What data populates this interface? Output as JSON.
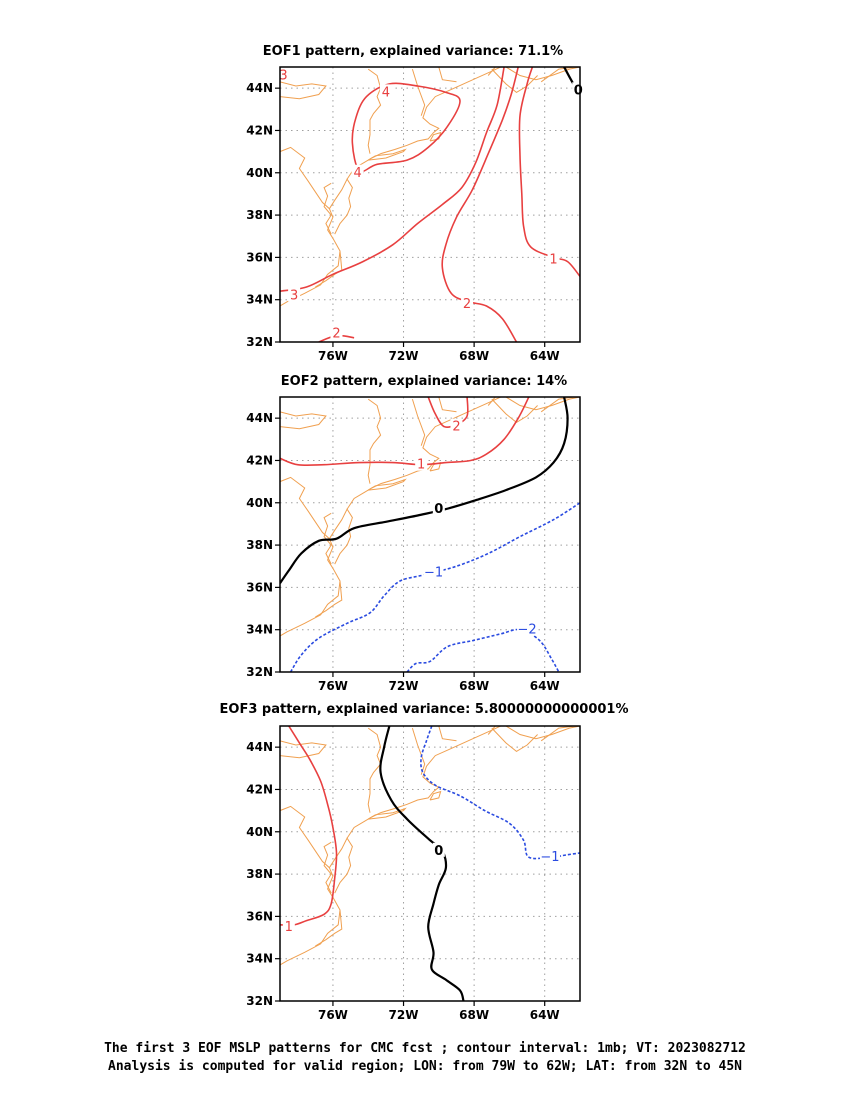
{
  "panels": [
    {
      "id": "eof1",
      "title": "EOF1 pattern, explained variance: 71.1%",
      "contours": [
        {
          "value": 4,
          "label": "4",
          "color": "#e84040",
          "dashed": false,
          "closed": true,
          "points": [
            [
              -74.5,
              40.1
            ],
            [
              -73.5,
              40.4
            ],
            [
              -71.8,
              40.6
            ],
            [
              -70.6,
              41.2
            ],
            [
              -69.5,
              42.2
            ],
            [
              -68.8,
              43.4
            ],
            [
              -69.6,
              43.8
            ],
            [
              -71.2,
              44.1
            ],
            [
              -72.8,
              44.2
            ],
            [
              -74.1,
              43.6
            ],
            [
              -74.7,
              42.6
            ],
            [
              -74.9,
              41.4
            ],
            [
              -74.5,
              40.1
            ]
          ],
          "labels": [
            [
              -73.0,
              43.8
            ],
            [
              -74.6,
              40.0
            ]
          ]
        },
        {
          "value": 3,
          "label": "3",
          "color": "#e84040",
          "dashed": false,
          "closed": false,
          "points": [
            [
              -79,
              34.4
            ],
            [
              -77.5,
              34.6
            ],
            [
              -76,
              35.2
            ],
            [
              -74.3,
              35.8
            ],
            [
              -72.6,
              36.6
            ],
            [
              -71.2,
              37.6
            ],
            [
              -69.8,
              38.5
            ],
            [
              -68.7,
              39.3
            ],
            [
              -67.9,
              40.5
            ],
            [
              -67.3,
              41.9
            ],
            [
              -66.7,
              43.2
            ],
            [
              -66.3,
              45
            ]
          ],
          "labels": [
            [
              -78.2,
              34.2
            ]
          ]
        },
        {
          "value": 2,
          "label": "2",
          "color": "#e84040",
          "dashed": false,
          "closed": false,
          "points": [
            [
              -65.6,
              32
            ],
            [
              -66.4,
              33.1
            ],
            [
              -67.3,
              33.7
            ],
            [
              -68.3,
              33.9
            ],
            [
              -69.3,
              34.3
            ],
            [
              -69.8,
              35.5
            ],
            [
              -69.6,
              36.6
            ],
            [
              -69.0,
              37.9
            ],
            [
              -68.1,
              39.2
            ],
            [
              -67.2,
              40.9
            ],
            [
              -66.4,
              42.5
            ],
            [
              -65.9,
              43.7
            ],
            [
              -65.5,
              45
            ]
          ],
          "labels": [
            [
              -68.4,
              33.8
            ]
          ]
        },
        {
          "value": 2,
          "label": "2",
          "color": "#e84040",
          "dashed": false,
          "closed": false,
          "points": [
            [
              -76.8,
              32
            ],
            [
              -75.8,
              32.3
            ],
            [
              -74.8,
              32.2
            ]
          ],
          "labels": [
            [
              -75.8,
              32.4
            ]
          ]
        },
        {
          "value": 1,
          "label": "1",
          "color": "#e84040",
          "dashed": false,
          "closed": false,
          "points": [
            [
              -62,
              35.1
            ],
            [
              -62.7,
              35.8
            ],
            [
              -63.5,
              36.0
            ],
            [
              -64.8,
              36.5
            ],
            [
              -65.2,
              37.5
            ],
            [
              -65.3,
              39.0
            ],
            [
              -65.4,
              40.8
            ],
            [
              -65.4,
              42.7
            ],
            [
              -65.0,
              44.2
            ],
            [
              -64.7,
              45
            ]
          ],
          "labels": [
            [
              -63.5,
              35.9
            ]
          ]
        },
        {
          "value": 3,
          "label": "3",
          "color": "#e84040",
          "dashed": false,
          "closed": false,
          "points": [
            [
              -79,
              44.8
            ],
            [
              -78.6,
              44.4
            ]
          ],
          "labels": [
            [
              -78.8,
              44.6
            ]
          ]
        },
        {
          "value": 0,
          "label": "0",
          "color": "#000000",
          "dashed": false,
          "closed": false,
          "width": 2.2,
          "points": [
            [
              -62.9,
              45
            ],
            [
              -62.3,
              44.1
            ],
            [
              -62,
              43.9
            ]
          ],
          "labels": [
            [
              -62.1,
              43.9
            ]
          ]
        }
      ]
    },
    {
      "id": "eof2",
      "title": "EOF2 pattern, explained variance: 14%",
      "contours": [
        {
          "value": 1,
          "label": "1",
          "color": "#e84040",
          "dashed": false,
          "closed": false,
          "points": [
            [
              -79,
              42.1
            ],
            [
              -78,
              41.8
            ],
            [
              -76.5,
              41.8
            ],
            [
              -74.5,
              41.9
            ],
            [
              -72.6,
              41.9
            ],
            [
              -71,
              41.8
            ],
            [
              -69.6,
              41.9
            ],
            [
              -68.2,
              42.0
            ],
            [
              -67.3,
              42.3
            ],
            [
              -66.3,
              43.0
            ],
            [
              -65.5,
              44.0
            ],
            [
              -64.9,
              45
            ]
          ],
          "labels": [
            [
              -71.0,
              41.8
            ]
          ]
        },
        {
          "value": 2,
          "label": "2",
          "color": "#e84040",
          "dashed": false,
          "closed": false,
          "points": [
            [
              -68.4,
              45
            ],
            [
              -68.4,
              44.1
            ],
            [
              -69.0,
              43.7
            ],
            [
              -69.7,
              43.6
            ],
            [
              -70.2,
              44.2
            ],
            [
              -70.6,
              45
            ]
          ],
          "labels": [
            [
              -69.0,
              43.6
            ]
          ]
        },
        {
          "value": 0,
          "label": "0",
          "color": "#000000",
          "dashed": false,
          "closed": false,
          "width": 2.2,
          "points": [
            [
              -79,
              36.2
            ],
            [
              -78.5,
              36.8
            ],
            [
              -77.8,
              37.6
            ],
            [
              -76.8,
              38.2
            ],
            [
              -75.8,
              38.3
            ],
            [
              -74.8,
              38.8
            ],
            [
              -73.0,
              39.1
            ],
            [
              -71.2,
              39.4
            ],
            [
              -69.6,
              39.7
            ],
            [
              -68.0,
              40.1
            ],
            [
              -66.2,
              40.6
            ],
            [
              -64.5,
              41.2
            ],
            [
              -63.5,
              41.9
            ],
            [
              -62.9,
              42.8
            ],
            [
              -62.7,
              44.0
            ],
            [
              -62.9,
              45
            ]
          ],
          "labels": [
            [
              -70.0,
              39.7
            ]
          ]
        },
        {
          "value": -1,
          "label": "1",
          "color": "#2a4be0",
          "dashed": true,
          "closed": false,
          "points": [
            [
              -78.4,
              32
            ],
            [
              -77.8,
              32.8
            ],
            [
              -76.8,
              33.6
            ],
            [
              -75.2,
              34.3
            ],
            [
              -73.9,
              34.8
            ],
            [
              -73.1,
              35.6
            ],
            [
              -72.2,
              36.3
            ],
            [
              -70.8,
              36.6
            ],
            [
              -69.0,
              37.0
            ],
            [
              -67.2,
              37.6
            ],
            [
              -65.4,
              38.4
            ],
            [
              -63.5,
              39.2
            ],
            [
              -62,
              40.0
            ]
          ],
          "labels": [
            [
              -70.3,
              36.7
            ]
          ]
        },
        {
          "value": -2,
          "label": "2",
          "color": "#2a4be0",
          "dashed": true,
          "closed": false,
          "points": [
            [
              -71.8,
              32
            ],
            [
              -71.3,
              32.4
            ],
            [
              -70.5,
              32.5
            ],
            [
              -69.5,
              33.2
            ],
            [
              -68.0,
              33.5
            ],
            [
              -66.5,
              33.8
            ],
            [
              -65.4,
              34.0
            ],
            [
              -64.3,
              33.5
            ],
            [
              -63.6,
              32.6
            ],
            [
              -63.2,
              32
            ]
          ],
          "labels": [
            [
              -65.0,
              34.0
            ]
          ]
        }
      ]
    },
    {
      "id": "eof3",
      "title": "EOF3 pattern, explained variance: 5.80000000000001%",
      "contours": [
        {
          "value": 1,
          "label": "1",
          "color": "#e84040",
          "dashed": false,
          "closed": false,
          "points": [
            [
              -78.5,
              45
            ],
            [
              -77.9,
              44.2
            ],
            [
              -77.3,
              43.4
            ],
            [
              -76.7,
              42.4
            ],
            [
              -76.3,
              41.3
            ],
            [
              -76.0,
              40.2
            ],
            [
              -75.8,
              39.0
            ],
            [
              -75.9,
              37.8
            ],
            [
              -76.1,
              36.6
            ],
            [
              -76.5,
              36.1
            ],
            [
              -77.5,
              35.8
            ],
            [
              -78.2,
              35.6
            ],
            [
              -79,
              35.6
            ]
          ],
          "labels": [
            [
              -78.5,
              35.5
            ]
          ]
        },
        {
          "value": 0,
          "label": "0",
          "color": "#000000",
          "dashed": false,
          "closed": false,
          "width": 2.2,
          "points": [
            [
              -72.8,
              45
            ],
            [
              -73.1,
              44.0
            ],
            [
              -73.3,
              42.8
            ],
            [
              -72.7,
              41.5
            ],
            [
              -71.8,
              40.6
            ],
            [
              -70.5,
              39.6
            ],
            [
              -69.8,
              39.1
            ],
            [
              -69.6,
              38.3
            ],
            [
              -70.0,
              37.5
            ],
            [
              -70.3,
              36.6
            ],
            [
              -70.6,
              35.5
            ],
            [
              -70.3,
              34.3
            ],
            [
              -70.4,
              33.5
            ],
            [
              -69.6,
              33.0
            ],
            [
              -68.8,
              32.5
            ],
            [
              -68.6,
              32
            ]
          ],
          "labels": [
            [
              -70.0,
              39.1
            ]
          ]
        },
        {
          "value": -1,
          "label": "1",
          "color": "#2a4be0",
          "dashed": true,
          "closed": false,
          "points": [
            [
              -70.4,
              45
            ],
            [
              -70.7,
              44.3
            ],
            [
              -71.0,
              43.5
            ],
            [
              -70.9,
              42.8
            ],
            [
              -70.2,
              42.2
            ],
            [
              -68.8,
              41.7
            ],
            [
              -67.4,
              41.0
            ],
            [
              -66.0,
              40.4
            ],
            [
              -65.2,
              39.6
            ],
            [
              -64.9,
              38.8
            ],
            [
              -63.6,
              38.8
            ],
            [
              -62.8,
              38.9
            ],
            [
              -62,
              39.0
            ]
          ],
          "labels": [
            [
              -63.7,
              38.8
            ]
          ]
        }
      ]
    }
  ],
  "axes": {
    "lat_ticks": [
      "44N",
      "42N",
      "40N",
      "38N",
      "36N",
      "34N",
      "32N"
    ],
    "lat_values": [
      44,
      42,
      40,
      38,
      36,
      34,
      32
    ],
    "lon_ticks": [
      "76W",
      "72W",
      "68W",
      "64W"
    ],
    "lon_values": [
      -76,
      -72,
      -68,
      -64
    ],
    "lon_range": [
      -79,
      -62
    ],
    "lat_range": [
      32,
      45
    ],
    "grid": "dotted"
  },
  "coastline_color": "#f0a050",
  "footer": {
    "line1": "The first 3 EOF MSLP patterns for CMC fcst ; contour interval: 1mb; VT: 2023082712",
    "line2": "Analysis is computed for valid region; LON: from 79W to 62W; LAT: from 32N to 45N"
  }
}
